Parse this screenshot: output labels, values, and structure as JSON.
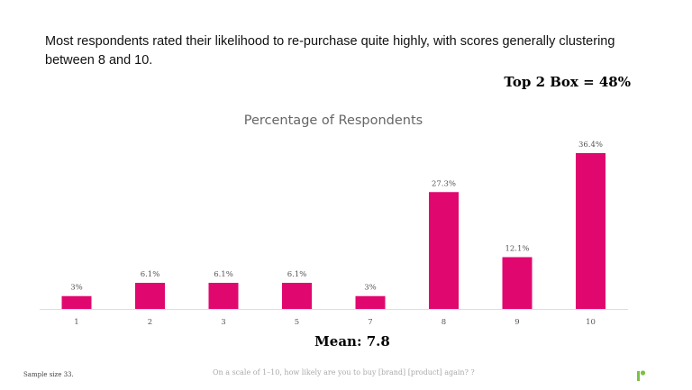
{
  "headline": "Most respondents rated their likelihood to re-purchase quite highly, with scores generally clustering between 8 and 10.",
  "top2box": "Top 2 Box = 48%",
  "mean": "Mean: 7.8",
  "sample_size": "Sample size 33.",
  "question": "On a scale of 1–10, how likely are you to buy [brand] [product] again? ?",
  "colors": {
    "bar": "#e0086f",
    "logo": "#7ac143"
  },
  "chart_data": {
    "type": "bar",
    "title": "Percentage of Respondents",
    "xlabel": "",
    "ylabel": "",
    "categories": [
      "1",
      "2",
      "3",
      "5",
      "7",
      "8",
      "9",
      "10"
    ],
    "values": [
      3,
      6.1,
      6.1,
      6.1,
      3,
      27.3,
      12.1,
      36.4
    ],
    "labels": [
      "3%",
      "6.1%",
      "6.1%",
      "6.1%",
      "3%",
      "27.3%",
      "12.1%",
      "36.4%"
    ],
    "ylim": [
      0,
      40
    ],
    "grid": false
  }
}
